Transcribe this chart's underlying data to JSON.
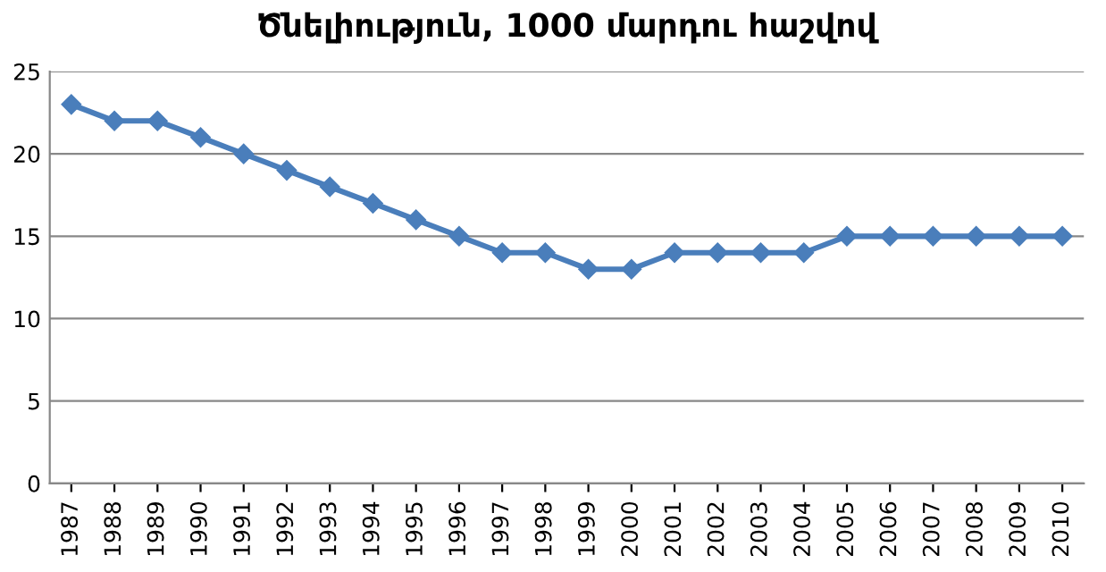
{
  "chart_data": {
    "type": "line",
    "title": "Ծնելիություն, 1000 մարդու հաշվով",
    "categories": [
      "1987",
      "1988",
      "1989",
      "1990",
      "1991",
      "1992",
      "1993",
      "1994",
      "1995",
      "1996",
      "1997",
      "1998",
      "1999",
      "2000",
      "2001",
      "2002",
      "2003",
      "2004",
      "2005",
      "2006",
      "2007",
      "2008",
      "2009",
      "2010"
    ],
    "series": [
      {
        "color": "#4a7ebb",
        "values": [
          23,
          22,
          22,
          21,
          20,
          19,
          18,
          17,
          16,
          15,
          14,
          14,
          13,
          13,
          14,
          14,
          14,
          14,
          15,
          15,
          15,
          15,
          15,
          15
        ]
      }
    ],
    "ylim": [
      0,
      25
    ],
    "yticks": [
      0,
      5,
      10,
      15,
      20,
      25
    ],
    "grid": "y",
    "marker": "diamond",
    "line_style": "solid",
    "legend": false
  }
}
